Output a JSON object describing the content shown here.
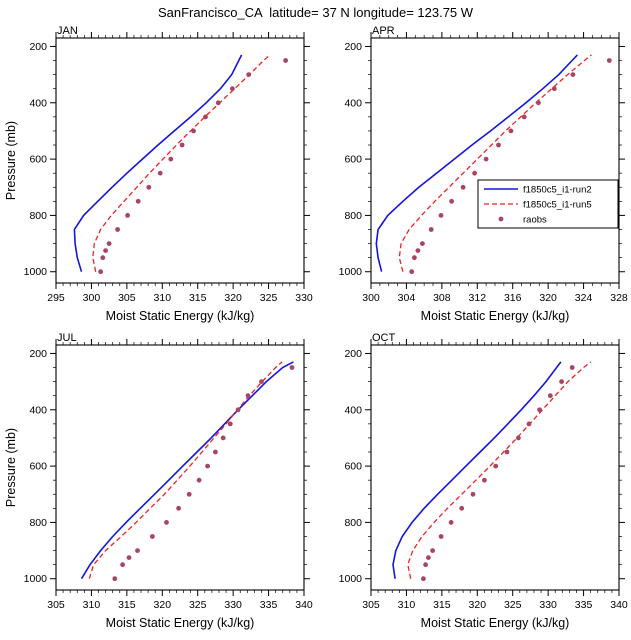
{
  "title": "SanFrancisco_CA  latitude= 37 N longitude= 123.75 W",
  "legend": {
    "position": "inside-top-right-of-APR-panel",
    "entries": [
      {
        "label": "f1850c5_i1-run2",
        "color": "#1414e0",
        "style": "solid"
      },
      {
        "label": "f1850c5_i1-run5",
        "color": "#ee2222",
        "style": "dashed"
      },
      {
        "label": "raobs",
        "color": "#a84464",
        "style": "dots"
      }
    ]
  },
  "chart_data": [
    {
      "id": "jan",
      "type": "line",
      "title": "JAN",
      "xlabel": "Moist Static Energy (kJ/kg)",
      "ylabel": "Pressure (mb)",
      "xlim": [
        295,
        330
      ],
      "xticks": [
        295,
        300,
        305,
        310,
        315,
        320,
        325,
        330
      ],
      "x_minor_step": 1,
      "ylim": [
        1040,
        170
      ],
      "yticks": [
        200,
        400,
        600,
        800,
        1000
      ],
      "y_minor_step": 50,
      "y_inverted": true,
      "show_legend": false,
      "series": [
        {
          "name": "f1850c5_i1-run2",
          "style": "solid",
          "pressure": [
            1000,
            950,
            900,
            850,
            800,
            750,
            700,
            650,
            600,
            550,
            500,
            450,
            400,
            350,
            300,
            250,
            230
          ],
          "x": [
            298.6,
            298.0,
            297.7,
            297.6,
            298.9,
            300.9,
            302.9,
            305.0,
            307.2,
            309.4,
            311.7,
            314.0,
            316.2,
            318.2,
            319.8,
            320.8,
            321.2
          ]
        },
        {
          "name": "f1850c5_i1-run5",
          "style": "dashed",
          "pressure": [
            1000,
            950,
            900,
            850,
            800,
            750,
            700,
            650,
            600,
            550,
            500,
            450,
            400,
            350,
            300,
            250,
            230
          ],
          "x": [
            300.6,
            300.2,
            300.4,
            301.3,
            302.8,
            304.6,
            306.4,
            308.2,
            310.1,
            312.0,
            314.0,
            316.0,
            318.1,
            320.2,
            322.3,
            324.3,
            325.2
          ]
        },
        {
          "name": "raobs",
          "style": "dots",
          "pressure": [
            1000,
            950,
            925,
            900,
            850,
            800,
            750,
            700,
            650,
            600,
            550,
            500,
            450,
            400,
            350,
            300,
            250
          ],
          "x": [
            301.3,
            301.6,
            302.0,
            302.5,
            303.7,
            305.1,
            306.6,
            308.1,
            309.7,
            311.2,
            312.8,
            314.4,
            316.1,
            317.9,
            319.9,
            322.2,
            327.4
          ]
        }
      ]
    },
    {
      "id": "apr",
      "type": "line",
      "title": "APR",
      "xlabel": "Moist Static Energy (kJ/kg)",
      "ylabel": "",
      "xlim": [
        300,
        328
      ],
      "xticks": [
        300,
        304,
        308,
        312,
        316,
        320,
        324,
        328
      ],
      "x_minor_step": 1,
      "ylim": [
        1040,
        170
      ],
      "yticks": [
        200,
        400,
        600,
        800,
        1000
      ],
      "y_minor_step": 50,
      "y_inverted": true,
      "show_legend": true,
      "series": [
        {
          "name": "f1850c5_i1-run2",
          "style": "solid",
          "pressure": [
            1000,
            950,
            900,
            850,
            800,
            750,
            700,
            650,
            600,
            550,
            500,
            450,
            400,
            350,
            300,
            250,
            230
          ],
          "x": [
            301.2,
            300.8,
            300.6,
            300.8,
            301.9,
            303.6,
            305.4,
            307.4,
            309.4,
            311.4,
            313.5,
            315.5,
            317.5,
            319.4,
            321.2,
            322.7,
            323.3
          ]
        },
        {
          "name": "f1850c5_i1-run5",
          "style": "dashed",
          "pressure": [
            1000,
            950,
            900,
            850,
            800,
            750,
            700,
            650,
            600,
            550,
            500,
            450,
            400,
            350,
            300,
            250,
            230
          ],
          "x": [
            303.6,
            303.2,
            303.4,
            304.3,
            305.7,
            307.2,
            308.8,
            310.4,
            312.0,
            313.6,
            315.2,
            316.9,
            318.6,
            320.4,
            322.2,
            324.1,
            324.9
          ]
        },
        {
          "name": "raobs",
          "style": "dots",
          "pressure": [
            1000,
            950,
            925,
            900,
            850,
            800,
            750,
            700,
            650,
            600,
            550,
            500,
            450,
            400,
            350,
            300,
            250
          ],
          "x": [
            304.6,
            304.9,
            305.3,
            305.8,
            306.8,
            307.9,
            309.1,
            310.4,
            311.7,
            313.0,
            314.4,
            315.8,
            317.3,
            318.9,
            320.7,
            322.8,
            326.9
          ]
        }
      ]
    },
    {
      "id": "jul",
      "type": "line",
      "title": "JUL",
      "xlabel": "Moist Static Energy (kJ/kg)",
      "ylabel": "Pressure (mb)",
      "xlim": [
        305,
        340
      ],
      "xticks": [
        305,
        310,
        315,
        320,
        325,
        330,
        335,
        340
      ],
      "x_minor_step": 1,
      "ylim": [
        1040,
        170
      ],
      "yticks": [
        200,
        400,
        600,
        800,
        1000
      ],
      "y_minor_step": 50,
      "y_inverted": true,
      "show_legend": false,
      "series": [
        {
          "name": "f1850c5_i1-run2",
          "style": "solid",
          "pressure": [
            1000,
            950,
            900,
            850,
            800,
            750,
            700,
            650,
            600,
            550,
            500,
            450,
            400,
            350,
            300,
            250,
            230
          ],
          "x": [
            308.6,
            309.8,
            311.3,
            313.0,
            314.9,
            316.9,
            318.9,
            320.9,
            322.9,
            324.9,
            326.9,
            328.8,
            330.7,
            332.7,
            334.7,
            337.0,
            338.5
          ]
        },
        {
          "name": "f1850c5_i1-run5",
          "style": "dashed",
          "pressure": [
            1000,
            950,
            900,
            850,
            800,
            750,
            700,
            650,
            600,
            550,
            500,
            450,
            400,
            350,
            300,
            250,
            230
          ],
          "x": [
            309.7,
            310.3,
            312.0,
            314.2,
            316.3,
            318.3,
            320.3,
            322.1,
            323.9,
            325.6,
            327.3,
            329.0,
            330.6,
            332.3,
            334.1,
            336.0,
            336.9
          ]
        },
        {
          "name": "raobs",
          "style": "dots",
          "pressure": [
            1000,
            950,
            925,
            900,
            850,
            800,
            750,
            700,
            650,
            600,
            550,
            500,
            450,
            400,
            350,
            300,
            250
          ],
          "x": [
            313.3,
            314.4,
            315.3,
            316.5,
            318.6,
            320.6,
            322.3,
            323.8,
            325.2,
            326.4,
            327.5,
            328.6,
            329.6,
            330.7,
            332.1,
            334.0,
            338.3
          ]
        }
      ]
    },
    {
      "id": "oct",
      "type": "line",
      "title": "OCT",
      "xlabel": "Moist Static Energy (kJ/kg)",
      "ylabel": "",
      "xlim": [
        305,
        340
      ],
      "xticks": [
        305,
        310,
        315,
        320,
        325,
        330,
        335,
        340
      ],
      "x_minor_step": 1,
      "ylim": [
        1040,
        170
      ],
      "yticks": [
        200,
        400,
        600,
        800,
        1000
      ],
      "y_minor_step": 50,
      "y_inverted": true,
      "show_legend": false,
      "series": [
        {
          "name": "f1850c5_i1-run2",
          "style": "solid",
          "pressure": [
            1000,
            950,
            900,
            850,
            800,
            750,
            700,
            650,
            600,
            550,
            500,
            450,
            400,
            350,
            300,
            250,
            230
          ],
          "x": [
            308.4,
            308.1,
            308.5,
            309.4,
            310.8,
            312.5,
            314.4,
            316.4,
            318.4,
            320.4,
            322.4,
            324.3,
            326.2,
            328.0,
            329.7,
            331.2,
            331.8
          ]
        },
        {
          "name": "f1850c5_i1-run5",
          "style": "dashed",
          "pressure": [
            1000,
            950,
            900,
            850,
            800,
            750,
            700,
            650,
            600,
            550,
            500,
            450,
            400,
            350,
            300,
            250,
            230
          ],
          "x": [
            310.6,
            310.2,
            310.9,
            312.2,
            313.9,
            315.8,
            317.8,
            319.8,
            321.8,
            323.7,
            325.6,
            327.4,
            329.2,
            331.0,
            332.8,
            335.0,
            336.0
          ]
        },
        {
          "name": "raobs",
          "style": "dots",
          "pressure": [
            1000,
            950,
            925,
            900,
            850,
            800,
            750,
            700,
            650,
            600,
            550,
            500,
            450,
            400,
            350,
            300,
            250
          ],
          "x": [
            312.4,
            312.7,
            313.1,
            313.7,
            314.9,
            316.3,
            317.8,
            319.4,
            321.0,
            322.6,
            324.2,
            325.8,
            327.3,
            328.8,
            330.3,
            331.9,
            333.4
          ]
        }
      ]
    }
  ]
}
